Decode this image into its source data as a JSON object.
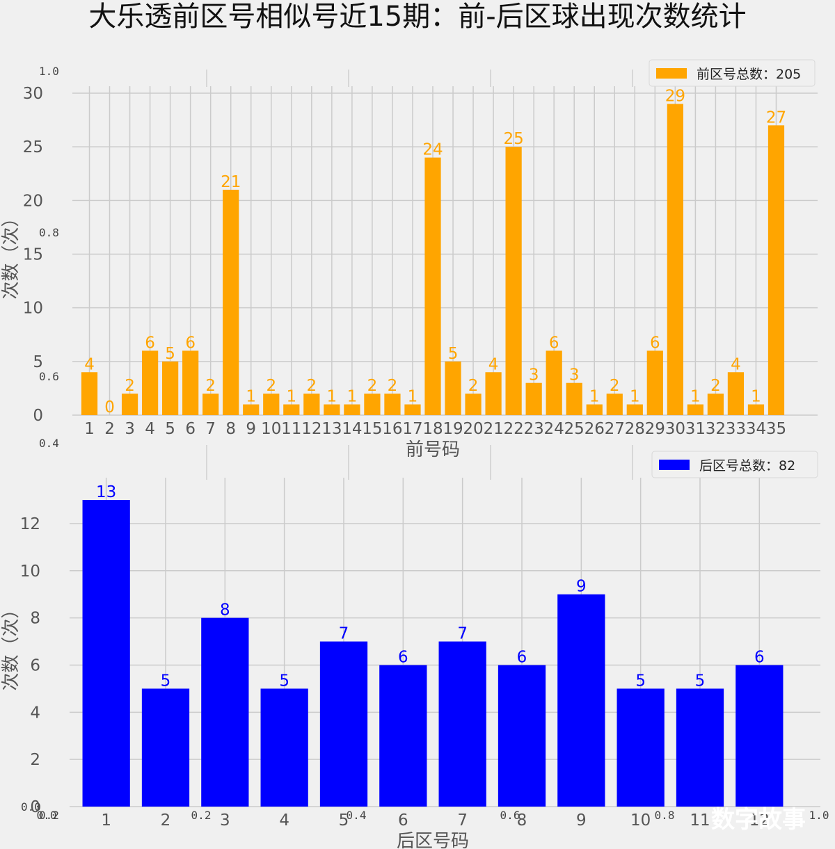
{
  "title": "大乐透前区号相似号近15期：前-后区球出现次数统计",
  "watermark": "数字故事",
  "ghost_ticks": {
    "y": [
      "1.0",
      "0.8",
      "0.6",
      "0.4",
      "0.2",
      "0.0"
    ],
    "x": [
      "0.0",
      "0.2",
      "0.4",
      "0.6",
      "0.8",
      "1.0"
    ]
  },
  "chart_data": [
    {
      "type": "bar",
      "color": "#ffa500",
      "legend": "前区号总数：205",
      "legend_position": "top-right",
      "xlabel": "前号码",
      "ylabel": "次数（次）",
      "ylim": [
        0,
        30
      ],
      "yticks": [
        0,
        5,
        10,
        15,
        20,
        25,
        30
      ],
      "grid": true,
      "categories": [
        "1",
        "2",
        "3",
        "4",
        "5",
        "6",
        "7",
        "8",
        "9",
        "10",
        "11",
        "12",
        "13",
        "14",
        "15",
        "16",
        "17",
        "18",
        "19",
        "20",
        "21",
        "22",
        "23",
        "24",
        "25",
        "26",
        "27",
        "28",
        "29",
        "30",
        "31",
        "32",
        "33",
        "34",
        "35"
      ],
      "values": [
        4,
        0,
        2,
        6,
        5,
        6,
        2,
        21,
        1,
        2,
        1,
        2,
        1,
        1,
        2,
        2,
        1,
        24,
        5,
        2,
        4,
        25,
        3,
        6,
        3,
        1,
        2,
        1,
        6,
        29,
        1,
        2,
        4,
        1,
        27
      ]
    },
    {
      "type": "bar",
      "color": "#0000ff",
      "legend": "后区号总数：82",
      "legend_position": "top-right",
      "xlabel": "后区号码",
      "ylabel": "次数（次）",
      "ylim": [
        0,
        13.65
      ],
      "yticks": [
        0,
        2,
        4,
        6,
        8,
        10,
        12
      ],
      "grid": true,
      "categories": [
        "1",
        "2",
        "3",
        "4",
        "5",
        "6",
        "7",
        "8",
        "9",
        "10",
        "11",
        "12"
      ],
      "values": [
        13,
        5,
        8,
        5,
        7,
        6,
        7,
        6,
        9,
        5,
        5,
        6
      ]
    }
  ]
}
